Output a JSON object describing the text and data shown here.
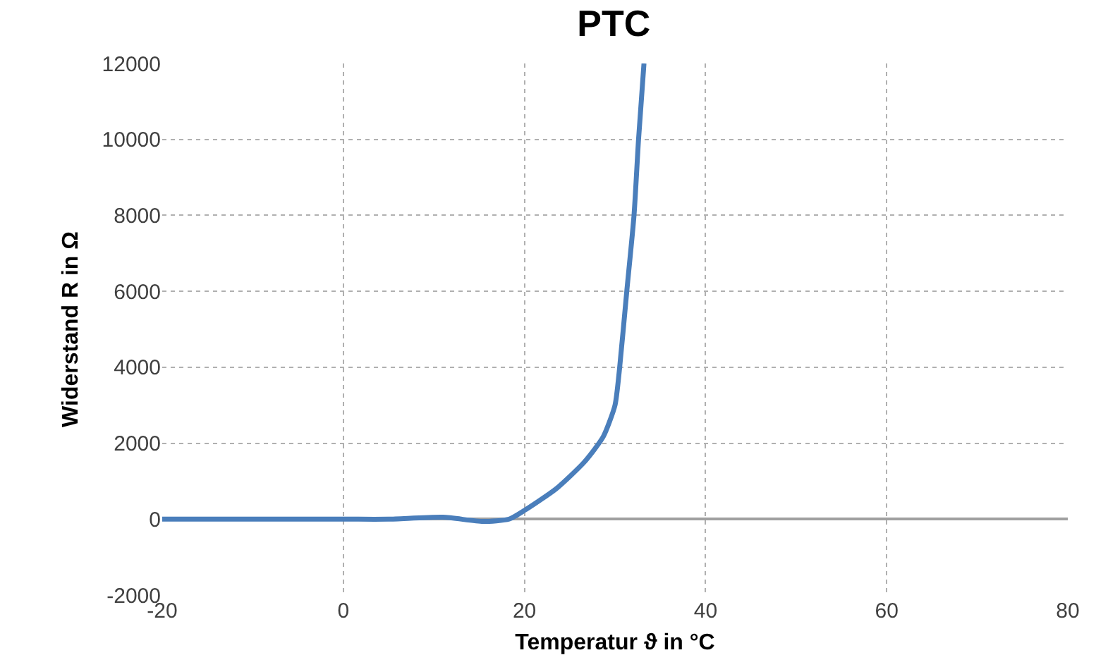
{
  "chart_data": {
    "type": "line",
    "title": "PTC",
    "xlabel": "Temperatur ϑ in °C",
    "ylabel": "Widerstand R in Ω",
    "xlim": [
      -20,
      80
    ],
    "xticks": [
      -20,
      0,
      20,
      40,
      60,
      80
    ],
    "ylim": [
      -2000,
      12000
    ],
    "yticks": [
      -2000,
      0,
      2000,
      4000,
      6000,
      8000,
      10000,
      12000
    ],
    "grid": true,
    "legend": false,
    "marker": "none",
    "line_style": "solid",
    "series": [
      {
        "color": "#4a7ebb",
        "x": [
          -20,
          -10,
          0,
          5,
          11,
          15.4,
          18.3,
          20,
          23.5,
          26.6,
          28.7,
          30,
          30.5,
          31.3,
          32.1,
          32.6,
          33.2
        ],
        "values": [
          0,
          0,
          0,
          0,
          50,
          -60,
          0,
          230,
          800,
          1500,
          2170,
          3000,
          3960,
          6000,
          8000,
          10000,
          12000
        ]
      }
    ]
  }
}
